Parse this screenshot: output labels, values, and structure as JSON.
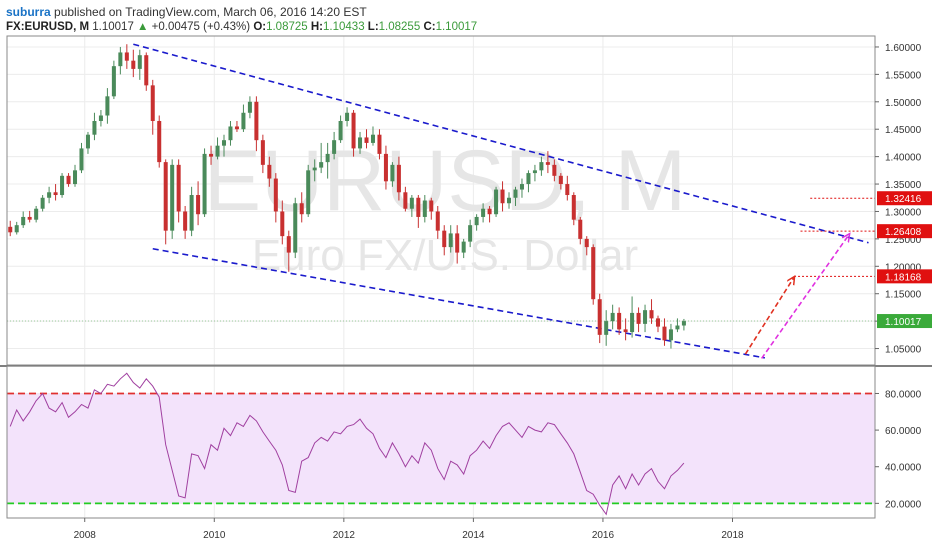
{
  "header": {
    "user": "suburra",
    "published_text": "published on TradingView.com, March 06, 2016 14:20 EST",
    "symbol": "FX:EURUSD, M",
    "last": "1.10017",
    "up_arrow": "▲",
    "change": "+0.00475 (+0.43%)",
    "o_label": "O:",
    "o_value": "1.08725",
    "h_label": "H:",
    "h_value": "1.10433",
    "l_label": "L:",
    "l_value": "1.08255",
    "c_label": "C:",
    "c_value": "1.10017"
  },
  "watermark": {
    "symbol": "EURUSD, M",
    "description": "Euro FX/U.S. Dollar"
  },
  "colors": {
    "bull": "#4a8a5a",
    "bear": "#c83030",
    "channel": "#1a1acc",
    "rsi_line": "#a040a0",
    "rsi_fill": "#f3e3fb",
    "rsi_upper": "#e03030",
    "rsi_lower": "#22cc22",
    "price_marker": "#e01010",
    "last_price": "#3aaa3a",
    "forecast_red": "#e03020",
    "forecast_magenta": "#e030e0"
  },
  "chart_data": [
    {
      "type": "candlestick",
      "title": "",
      "interval": "monthly",
      "y_axis_ticks": [
        "1.60000",
        "1.55000",
        "1.50000",
        "1.45000",
        "1.40000",
        "1.35000",
        "1.30000",
        "1.25000",
        "1.20000",
        "1.15000",
        "1.10000",
        "1.05000"
      ],
      "x_axis_ticks": [
        "2008",
        "2010",
        "2012",
        "2014",
        "2016",
        "2018"
      ],
      "ylim": [
        1.02,
        1.62
      ],
      "xlim": [
        2006.8,
        2020.2
      ],
      "candles": [
        [
          2006.85,
          1.272,
          1.283,
          1.255,
          1.262
        ],
        [
          2006.95,
          1.262,
          1.281,
          1.258,
          1.275
        ],
        [
          2007.05,
          1.275,
          1.3,
          1.27,
          1.29
        ],
        [
          2007.15,
          1.29,
          1.301,
          1.28,
          1.285
        ],
        [
          2007.25,
          1.285,
          1.31,
          1.28,
          1.305
        ],
        [
          2007.35,
          1.305,
          1.33,
          1.3,
          1.325
        ],
        [
          2007.45,
          1.325,
          1.345,
          1.315,
          1.335
        ],
        [
          2007.55,
          1.335,
          1.35,
          1.32,
          1.33
        ],
        [
          2007.65,
          1.33,
          1.37,
          1.325,
          1.365
        ],
        [
          2007.75,
          1.365,
          1.37,
          1.345,
          1.35
        ],
        [
          2007.85,
          1.35,
          1.385,
          1.345,
          1.375
        ],
        [
          2007.95,
          1.375,
          1.425,
          1.37,
          1.415
        ],
        [
          2008.05,
          1.415,
          1.445,
          1.405,
          1.44
        ],
        [
          2008.15,
          1.44,
          1.48,
          1.43,
          1.465
        ],
        [
          2008.25,
          1.465,
          1.485,
          1.455,
          1.475
        ],
        [
          2008.35,
          1.475,
          1.525,
          1.46,
          1.51
        ],
        [
          2008.45,
          1.51,
          1.575,
          1.505,
          1.565
        ],
        [
          2008.55,
          1.565,
          1.6,
          1.55,
          1.59
        ],
        [
          2008.65,
          1.59,
          1.605,
          1.56,
          1.575
        ],
        [
          2008.75,
          1.575,
          1.595,
          1.545,
          1.56
        ],
        [
          2008.85,
          1.56,
          1.595,
          1.54,
          1.585
        ],
        [
          2008.95,
          1.585,
          1.59,
          1.52,
          1.53
        ],
        [
          2009.05,
          1.53,
          1.54,
          1.44,
          1.465
        ],
        [
          2009.15,
          1.465,
          1.475,
          1.38,
          1.39
        ],
        [
          2009.25,
          1.39,
          1.395,
          1.24,
          1.265
        ],
        [
          2009.35,
          1.265,
          1.395,
          1.25,
          1.385
        ],
        [
          2009.45,
          1.385,
          1.395,
          1.28,
          1.3
        ],
        [
          2009.55,
          1.3,
          1.31,
          1.25,
          1.265
        ],
        [
          2009.65,
          1.265,
          1.345,
          1.255,
          1.33
        ],
        [
          2009.75,
          1.33,
          1.355,
          1.275,
          1.295
        ],
        [
          2009.85,
          1.295,
          1.415,
          1.29,
          1.405
        ],
        [
          2009.95,
          1.405,
          1.42,
          1.385,
          1.4
        ],
        [
          2010.05,
          1.4,
          1.435,
          1.395,
          1.42
        ],
        [
          2010.15,
          1.42,
          1.44,
          1.4,
          1.43
        ],
        [
          2010.25,
          1.43,
          1.465,
          1.42,
          1.455
        ],
        [
          2010.35,
          1.455,
          1.465,
          1.445,
          1.45
        ],
        [
          2010.45,
          1.45,
          1.495,
          1.445,
          1.48
        ],
        [
          2010.55,
          1.48,
          1.51,
          1.47,
          1.5
        ],
        [
          2010.65,
          1.5,
          1.51,
          1.41,
          1.43
        ],
        [
          2010.75,
          1.43,
          1.44,
          1.37,
          1.385
        ],
        [
          2010.85,
          1.385,
          1.4,
          1.345,
          1.36
        ],
        [
          2010.95,
          1.36,
          1.37,
          1.28,
          1.3
        ],
        [
          2011.05,
          1.3,
          1.32,
          1.24,
          1.255
        ],
        [
          2011.15,
          1.255,
          1.265,
          1.19,
          1.225
        ],
        [
          2011.25,
          1.225,
          1.325,
          1.215,
          1.315
        ],
        [
          2011.35,
          1.315,
          1.335,
          1.28,
          1.295
        ],
        [
          2011.45,
          1.295,
          1.385,
          1.29,
          1.375
        ],
        [
          2011.55,
          1.375,
          1.395,
          1.355,
          1.38
        ],
        [
          2011.65,
          1.38,
          1.425,
          1.37,
          1.39
        ],
        [
          2011.75,
          1.39,
          1.425,
          1.36,
          1.405
        ],
        [
          2011.85,
          1.405,
          1.445,
          1.395,
          1.43
        ],
        [
          2011.95,
          1.43,
          1.475,
          1.425,
          1.465
        ],
        [
          2012.05,
          1.465,
          1.49,
          1.455,
          1.48
        ],
        [
          2012.15,
          1.48,
          1.485,
          1.4,
          1.415
        ],
        [
          2012.25,
          1.415,
          1.445,
          1.405,
          1.435
        ],
        [
          2012.35,
          1.435,
          1.45,
          1.415,
          1.425
        ],
        [
          2012.45,
          1.425,
          1.455,
          1.42,
          1.44
        ],
        [
          2012.55,
          1.44,
          1.45,
          1.395,
          1.405
        ],
        [
          2012.65,
          1.405,
          1.42,
          1.34,
          1.355
        ],
        [
          2012.75,
          1.355,
          1.39,
          1.345,
          1.385
        ],
        [
          2012.85,
          1.385,
          1.4,
          1.32,
          1.335
        ],
        [
          2012.95,
          1.335,
          1.345,
          1.3,
          1.305
        ],
        [
          2013.05,
          1.305,
          1.33,
          1.29,
          1.325
        ],
        [
          2013.15,
          1.325,
          1.33,
          1.27,
          1.29
        ],
        [
          2013.25,
          1.29,
          1.33,
          1.28,
          1.32
        ],
        [
          2013.35,
          1.32,
          1.325,
          1.285,
          1.3
        ],
        [
          2013.45,
          1.3,
          1.31,
          1.25,
          1.265
        ],
        [
          2013.55,
          1.265,
          1.275,
          1.22,
          1.235
        ],
        [
          2013.65,
          1.235,
          1.275,
          1.225,
          1.26
        ],
        [
          2013.75,
          1.26,
          1.275,
          1.205,
          1.225
        ],
        [
          2013.85,
          1.225,
          1.25,
          1.215,
          1.245
        ],
        [
          2013.95,
          1.245,
          1.285,
          1.235,
          1.275
        ],
        [
          2014.05,
          1.275,
          1.295,
          1.265,
          1.29
        ],
        [
          2014.15,
          1.29,
          1.315,
          1.28,
          1.305
        ],
        [
          2014.25,
          1.305,
          1.31,
          1.28,
          1.295
        ],
        [
          2014.35,
          1.295,
          1.345,
          1.29,
          1.34
        ],
        [
          2014.45,
          1.34,
          1.355,
          1.3,
          1.315
        ],
        [
          2014.55,
          1.315,
          1.335,
          1.305,
          1.325
        ],
        [
          2014.65,
          1.325,
          1.345,
          1.31,
          1.34
        ],
        [
          2014.75,
          1.34,
          1.36,
          1.325,
          1.35
        ],
        [
          2014.85,
          1.35,
          1.375,
          1.335,
          1.37
        ],
        [
          2014.95,
          1.37,
          1.385,
          1.355,
          1.375
        ],
        [
          2015.05,
          1.375,
          1.4,
          1.365,
          1.39
        ],
        [
          2015.15,
          1.39,
          1.41,
          1.37,
          1.385
        ],
        [
          2015.25,
          1.385,
          1.395,
          1.355,
          1.365
        ],
        [
          2015.35,
          1.365,
          1.37,
          1.34,
          1.35
        ],
        [
          2015.45,
          1.35,
          1.365,
          1.32,
          1.33
        ],
        [
          2015.55,
          1.33,
          1.335,
          1.275,
          1.285
        ],
        [
          2015.65,
          1.285,
          1.29,
          1.24,
          1.25
        ],
        [
          2015.75,
          1.25,
          1.255,
          1.22,
          1.235
        ],
        [
          2015.85,
          1.235,
          1.24,
          1.13,
          1.14
        ],
        [
          2015.95,
          1.14,
          1.15,
          1.06,
          1.075
        ],
        [
          2016.05,
          1.075,
          1.12,
          1.055,
          1.1
        ],
        [
          2016.15,
          1.1,
          1.13,
          1.085,
          1.115
        ],
        [
          2016.25,
          1.115,
          1.125,
          1.075,
          1.085
        ],
        [
          2016.35,
          1.085,
          1.105,
          1.065,
          1.08
        ],
        [
          2016.45,
          1.08,
          1.145,
          1.07,
          1.115
        ],
        [
          2016.55,
          1.115,
          1.125,
          1.08,
          1.095
        ],
        [
          2016.65,
          1.095,
          1.13,
          1.08,
          1.12
        ],
        [
          2016.75,
          1.12,
          1.14,
          1.095,
          1.105
        ],
        [
          2016.85,
          1.105,
          1.11,
          1.08,
          1.09
        ],
        [
          2016.95,
          1.09,
          1.105,
          1.055,
          1.065
        ],
        [
          2017.05,
          1.065,
          1.095,
          1.05,
          1.085
        ],
        [
          2017.15,
          1.085,
          1.105,
          1.08,
          1.092
        ],
        [
          2017.25,
          1.092,
          1.104,
          1.083,
          1.1
        ]
      ],
      "price_labels": [
        "1.32416",
        "1.26408",
        "1.18168"
      ],
      "last_price_label": "1.10017",
      "price_levels": [
        1.32416,
        1.26408,
        1.18168,
        1.10017
      ],
      "channel_upper": [
        [
          2008.75,
          1.605
        ],
        [
          2020.1,
          1.243
        ]
      ],
      "channel_lower": [
        [
          2009.05,
          1.232
        ],
        [
          2018.5,
          1.033
        ]
      ],
      "forecast_red": [
        [
          2018.2,
          1.04
        ],
        [
          2018.95,
          1.18
        ]
      ],
      "forecast_magenta": [
        [
          2018.45,
          1.032
        ],
        [
          2019.8,
          1.258
        ]
      ]
    },
    {
      "type": "line",
      "title": "",
      "indicator": "RSI",
      "y_axis_ticks": [
        "80.0000",
        "60.0000",
        "40.0000",
        "20.0000"
      ],
      "ylim": [
        12,
        95
      ],
      "upper_band": 80,
      "lower_band": 20,
      "x": [
        2006.85,
        2006.95,
        2007.05,
        2007.15,
        2007.25,
        2007.35,
        2007.45,
        2007.55,
        2007.65,
        2007.75,
        2007.85,
        2007.95,
        2008.05,
        2008.15,
        2008.25,
        2008.35,
        2008.45,
        2008.55,
        2008.65,
        2008.75,
        2008.85,
        2008.95,
        2009.05,
        2009.15,
        2009.25,
        2009.35,
        2009.45,
        2009.55,
        2009.65,
        2009.75,
        2009.85,
        2009.95,
        2010.05,
        2010.15,
        2010.25,
        2010.35,
        2010.45,
        2010.55,
        2010.65,
        2010.75,
        2010.85,
        2010.95,
        2011.05,
        2011.15,
        2011.25,
        2011.35,
        2011.45,
        2011.55,
        2011.65,
        2011.75,
        2011.85,
        2011.95,
        2012.05,
        2012.15,
        2012.25,
        2012.35,
        2012.45,
        2012.55,
        2012.65,
        2012.75,
        2012.85,
        2012.95,
        2013.05,
        2013.15,
        2013.25,
        2013.35,
        2013.45,
        2013.55,
        2013.65,
        2013.75,
        2013.85,
        2013.95,
        2014.05,
        2014.15,
        2014.25,
        2014.35,
        2014.45,
        2014.55,
        2014.65,
        2014.75,
        2014.85,
        2014.95,
        2015.05,
        2015.15,
        2015.25,
        2015.35,
        2015.45,
        2015.55,
        2015.65,
        2015.75,
        2015.85,
        2015.95,
        2016.05,
        2016.15,
        2016.25,
        2016.35,
        2016.45,
        2016.55,
        2016.65,
        2016.75,
        2016.85,
        2016.95,
        2017.05,
        2017.15,
        2017.25
      ],
      "values": [
        62,
        71,
        65,
        70,
        76,
        80,
        72,
        70,
        75,
        67,
        70,
        74,
        72,
        82,
        80,
        85,
        84,
        88,
        91,
        86,
        83,
        88,
        84,
        78,
        52,
        38,
        24,
        23,
        47,
        46,
        39,
        52,
        49,
        61,
        57,
        64,
        62,
        68,
        65,
        59,
        54,
        49,
        41,
        27,
        26,
        43,
        45,
        53,
        56,
        54,
        59,
        58,
        62,
        63,
        66,
        61,
        58,
        50,
        45,
        53,
        47,
        40,
        46,
        42,
        53,
        49,
        39,
        33,
        43,
        41,
        36,
        46,
        49,
        54,
        50,
        57,
        62,
        64,
        60,
        56,
        62,
        60,
        59,
        64,
        63,
        58,
        53,
        47,
        37,
        27,
        25,
        19,
        14,
        30,
        35,
        28,
        36,
        30,
        36,
        39,
        32,
        28,
        35,
        38,
        42
      ]
    }
  ]
}
